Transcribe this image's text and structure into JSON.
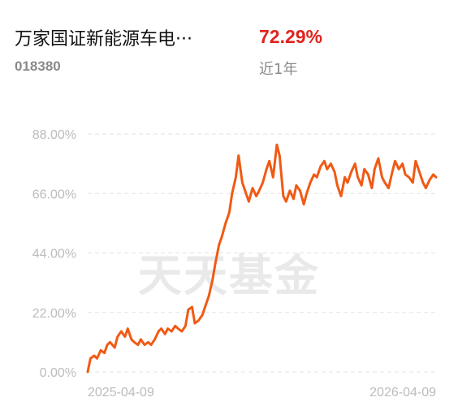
{
  "header": {
    "fund_name": "万家国证新能源车电···",
    "fund_code": "018380",
    "return_value": "72.29%",
    "return_period": "近1年",
    "return_color": "#e0241e"
  },
  "watermark": "天天基金",
  "chart_data": {
    "type": "line",
    "y_unit": "%",
    "ylim": [
      0,
      88
    ],
    "y_ticks": [
      0,
      22,
      44,
      66,
      88
    ],
    "y_tick_labels": [
      "0.00%",
      "22.00%",
      "44.00%",
      "66.00%",
      "88.00%"
    ],
    "x_tick_labels": [
      "2025-04-09",
      "2026-04-09"
    ],
    "grid": "horizontal dashed",
    "line_color": "#f05a14",
    "series": [
      {
        "x": [
          "2025-04-09",
          "2025-04-12",
          "2025-04-16",
          "2025-04-19",
          "2025-04-23",
          "2025-04-27",
          "2025-04-30",
          "2025-05-03",
          "2025-05-08",
          "2025-05-11",
          "2025-05-15",
          "2025-05-19",
          "2025-05-22",
          "2025-05-26",
          "2025-05-29",
          "2025-06-02",
          "2025-06-05",
          "2025-06-09",
          "2025-06-13",
          "2025-06-16",
          "2025-06-20",
          "2025-06-24",
          "2025-06-27",
          "2025-07-01",
          "2025-07-04",
          "2025-07-08",
          "2025-07-12",
          "2025-07-15",
          "2025-07-19",
          "2025-07-23",
          "2025-07-26",
          "2025-07-30",
          "2025-08-02",
          "2025-08-06",
          "2025-08-10",
          "2025-08-13",
          "2025-08-17",
          "2025-08-21",
          "2025-08-24",
          "2025-08-28",
          "2025-08-31",
          "2025-09-04",
          "2025-09-08",
          "2025-09-11",
          "2025-09-15",
          "2025-09-18",
          "2025-09-22",
          "2025-09-26",
          "2025-09-29",
          "2025-10-03",
          "2025-10-07",
          "2025-10-10",
          "2025-10-14",
          "2025-10-18",
          "2025-10-21",
          "2025-10-25",
          "2025-10-29",
          "2025-11-01",
          "2025-11-05",
          "2025-11-08",
          "2025-11-12",
          "2025-11-16",
          "2025-11-19",
          "2025-11-23",
          "2025-11-27",
          "2025-11-30",
          "2025-12-04",
          "2025-12-08",
          "2025-12-11",
          "2025-12-15",
          "2025-12-19",
          "2025-12-22",
          "2025-12-26",
          "2025-12-30",
          "2026-01-02",
          "2026-01-06",
          "2026-01-10",
          "2026-01-13",
          "2026-01-17",
          "2026-01-21",
          "2026-01-24",
          "2026-01-28",
          "2026-01-31",
          "2026-02-04",
          "2026-02-08",
          "2026-02-11",
          "2026-02-15",
          "2026-02-19",
          "2026-02-22",
          "2026-02-26",
          "2026-03-02",
          "2026-03-05",
          "2026-03-09",
          "2026-03-13",
          "2026-03-16",
          "2026-03-20",
          "2026-03-24",
          "2026-03-27",
          "2026-03-31",
          "2026-04-04",
          "2026-04-07",
          "2026-04-11",
          "2026-04-15",
          "2026-04-18"
        ],
        "y": [
          0,
          5,
          6,
          5,
          8,
          7,
          10,
          11,
          9,
          13,
          15,
          13,
          16,
          12,
          11,
          10,
          12,
          10,
          11,
          10,
          12,
          15,
          16,
          14,
          16,
          15,
          17,
          16,
          15,
          17,
          23,
          24,
          18,
          19,
          21,
          24,
          28,
          34,
          40,
          47,
          50,
          55,
          59,
          66,
          72,
          80,
          70,
          66,
          63,
          68,
          65,
          67,
          70,
          75,
          78,
          72,
          84,
          80,
          65,
          63,
          67,
          64,
          69,
          67,
          62,
          66,
          70,
          73,
          72,
          76,
          78,
          75,
          77,
          74,
          69,
          65,
          72,
          70,
          74,
          77,
          72,
          69,
          75,
          73,
          68,
          75,
          79,
          72,
          70,
          68,
          74,
          78,
          75,
          77,
          73,
          72,
          70,
          78,
          74,
          70,
          68,
          71,
          73,
          72
        ]
      }
    ]
  }
}
